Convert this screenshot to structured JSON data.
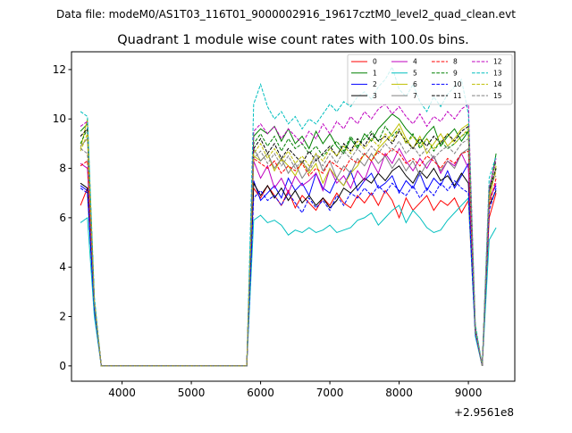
{
  "chart_data": {
    "type": "line",
    "suptitle": "Data file: modeM0/AS1T03_116T01_9000002916_19617cztM0_level2_quad_clean.evt",
    "title": "Quadrant 1 module wise count rates with 100.0s bins.",
    "xlabel": "",
    "ylabel": "",
    "x_offset_label": "+2.9561e8",
    "xlim": [
      3270,
      9670
    ],
    "ylim": [
      -0.62,
      12.72
    ],
    "x_ticks": [
      4000,
      5000,
      6000,
      7000,
      8000,
      9000
    ],
    "x_tick_labels": [
      "4000",
      "5000",
      "6000",
      "7000",
      "8000",
      "9000"
    ],
    "y_ticks": [
      0,
      2,
      4,
      6,
      8,
      10,
      12
    ],
    "y_tick_labels": [
      "0",
      "2",
      "4",
      "6",
      "8",
      "10",
      "12"
    ],
    "grid": false,
    "legend_position": "top-right",
    "legend_columns": 4,
    "x": [
      3400,
      3500,
      3600,
      3700,
      3800,
      3900,
      4000,
      4100,
      4200,
      4300,
      4400,
      4500,
      4600,
      4700,
      4800,
      4900,
      5000,
      5100,
      5200,
      5300,
      5400,
      5500,
      5600,
      5700,
      5800,
      5900,
      6000,
      6100,
      6200,
      6300,
      6400,
      6500,
      6600,
      6700,
      6800,
      6900,
      7000,
      7100,
      7200,
      7300,
      7400,
      7500,
      7600,
      7700,
      7800,
      7900,
      8000,
      8100,
      8200,
      8300,
      8400,
      8500,
      8600,
      8700,
      8800,
      8900,
      9000,
      9100,
      9200,
      9300,
      9400
    ],
    "series": [
      {
        "name": "0",
        "color": "#ff0000",
        "dash": "solid",
        "values": [
          6.5,
          7.2,
          2.5,
          0,
          0,
          0,
          0,
          0,
          0,
          0,
          0,
          0,
          0,
          0,
          0,
          0,
          0,
          0,
          0,
          0,
          0,
          0,
          0,
          0,
          0,
          7.2,
          6.8,
          7.3,
          6.9,
          6.5,
          7.1,
          6.4,
          6.9,
          6.6,
          6.3,
          6.8,
          6.5,
          7.0,
          6.6,
          6.4,
          6.9,
          6.6,
          7.0,
          6.5,
          7.1,
          6.7,
          6.0,
          6.8,
          6.3,
          6.6,
          6.9,
          6.3,
          6.7,
          6.5,
          6.8,
          6.2,
          6.7,
          1.3,
          0,
          6.0,
          7.0
        ]
      },
      {
        "name": "1",
        "color": "#008000",
        "dash": "solid",
        "values": [
          9.5,
          9.8,
          2.6,
          0,
          0,
          0,
          0,
          0,
          0,
          0,
          0,
          0,
          0,
          0,
          0,
          0,
          0,
          0,
          0,
          0,
          0,
          0,
          0,
          0,
          0,
          9.3,
          9.6,
          9.4,
          9.7,
          9.1,
          9.6,
          9.0,
          9.3,
          8.8,
          9.5,
          9.0,
          9.4,
          8.9,
          8.6,
          9.2,
          8.8,
          9.4,
          9.1,
          9.6,
          9.9,
          10.2,
          10.0,
          9.6,
          9.3,
          9.0,
          9.4,
          9.7,
          8.9,
          9.3,
          9.6,
          9.1,
          9.5,
          1.5,
          0,
          7.0,
          8.6
        ]
      },
      {
        "name": "2",
        "color": "#0000ff",
        "dash": "solid",
        "values": [
          7.3,
          7.1,
          2.3,
          0,
          0,
          0,
          0,
          0,
          0,
          0,
          0,
          0,
          0,
          0,
          0,
          0,
          0,
          0,
          0,
          0,
          0,
          0,
          0,
          0,
          0,
          7.5,
          6.7,
          7.0,
          7.3,
          6.8,
          7.6,
          7.1,
          7.4,
          6.9,
          7.8,
          7.2,
          7.0,
          7.6,
          7.3,
          7.9,
          7.1,
          7.5,
          7.8,
          7.2,
          7.4,
          7.7,
          7.0,
          7.5,
          7.2,
          7.8,
          7.1,
          7.6,
          7.3,
          7.9,
          7.2,
          7.7,
          8.2,
          1.4,
          0,
          6.8,
          7.3
        ]
      },
      {
        "name": "3",
        "color": "#000000",
        "dash": "solid",
        "values": [
          7.4,
          7.2,
          2.4,
          0,
          0,
          0,
          0,
          0,
          0,
          0,
          0,
          0,
          0,
          0,
          0,
          0,
          0,
          0,
          0,
          0,
          0,
          0,
          0,
          0,
          0,
          7.4,
          6.9,
          7.3,
          6.8,
          7.2,
          6.7,
          7.1,
          6.6,
          6.9,
          6.5,
          6.8,
          6.4,
          6.7,
          7.2,
          7.0,
          7.3,
          7.6,
          7.4,
          7.8,
          7.5,
          7.9,
          8.1,
          7.7,
          7.4,
          7.9,
          7.6,
          8.0,
          7.5,
          7.7,
          7.3,
          7.8,
          7.4,
          1.3,
          0,
          6.5,
          7.1
        ]
      },
      {
        "name": "4",
        "color": "#bf00bf",
        "dash": "solid",
        "values": [
          8.2,
          8.0,
          2.5,
          0,
          0,
          0,
          0,
          0,
          0,
          0,
          0,
          0,
          0,
          0,
          0,
          0,
          0,
          0,
          0,
          0,
          0,
          0,
          0,
          0,
          0,
          8.3,
          7.6,
          8.1,
          7.2,
          7.6,
          7.0,
          7.7,
          7.3,
          7.5,
          7.8,
          7.1,
          8.0,
          7.4,
          7.7,
          7.2,
          7.9,
          7.5,
          8.3,
          7.8,
          8.6,
          8.2,
          8.8,
          8.3,
          7.9,
          8.4,
          8.0,
          8.5,
          7.8,
          8.3,
          8.1,
          8.6,
          8.0,
          1.4,
          0,
          6.7,
          7.4
        ]
      },
      {
        "name": "5",
        "color": "#00bfbf",
        "dash": "solid",
        "values": [
          5.8,
          6.0,
          2.0,
          0,
          0,
          0,
          0,
          0,
          0,
          0,
          0,
          0,
          0,
          0,
          0,
          0,
          0,
          0,
          0,
          0,
          0,
          0,
          0,
          0,
          0,
          5.9,
          6.1,
          5.8,
          5.9,
          5.7,
          5.3,
          5.5,
          5.4,
          5.6,
          5.4,
          5.5,
          5.7,
          5.4,
          5.5,
          5.6,
          5.9,
          6.0,
          6.2,
          5.7,
          6.0,
          6.3,
          6.5,
          5.8,
          6.3,
          6.0,
          5.6,
          5.4,
          5.5,
          5.9,
          6.2,
          6.5,
          6.8,
          1.2,
          0,
          5.1,
          5.6
        ]
      },
      {
        "name": "6",
        "color": "#bfbf00",
        "dash": "solid",
        "values": [
          8.8,
          10.0,
          2.6,
          0,
          0,
          0,
          0,
          0,
          0,
          0,
          0,
          0,
          0,
          0,
          0,
          0,
          0,
          0,
          0,
          0,
          0,
          0,
          0,
          0,
          0,
          8.5,
          8.3,
          8.6,
          7.9,
          8.4,
          8.1,
          7.7,
          8.3,
          7.8,
          8.2,
          7.4,
          8.0,
          7.6,
          7.3,
          7.8,
          8.1,
          8.6,
          8.3,
          8.8,
          9.1,
          9.4,
          9.8,
          9.2,
          8.8,
          9.3,
          8.6,
          9.0,
          9.4,
          8.9,
          9.2,
          9.6,
          9.8,
          1.5,
          0,
          6.7,
          8.1
        ]
      },
      {
        "name": "7",
        "color": "#808080",
        "dash": "solid",
        "values": [
          8.9,
          9.2,
          2.5,
          0,
          0,
          0,
          0,
          0,
          0,
          0,
          0,
          0,
          0,
          0,
          0,
          0,
          0,
          0,
          0,
          0,
          0,
          0,
          0,
          0,
          0,
          8.8,
          8.3,
          8.6,
          8.0,
          8.4,
          7.8,
          8.2,
          7.6,
          8.0,
          8.6,
          7.9,
          8.3,
          7.6,
          8.1,
          7.8,
          8.4,
          8.1,
          8.6,
          8.2,
          8.5,
          8.0,
          8.4,
          7.9,
          8.3,
          7.7,
          8.2,
          8.5,
          7.9,
          8.3,
          8.0,
          8.6,
          8.8,
          1.4,
          0,
          7.0,
          8.0
        ]
      },
      {
        "name": "8",
        "color": "#ff0000",
        "dash": "dashed",
        "values": [
          8.1,
          8.3,
          2.5,
          0,
          0,
          0,
          0,
          0,
          0,
          0,
          0,
          0,
          0,
          0,
          0,
          0,
          0,
          0,
          0,
          0,
          0,
          0,
          0,
          0,
          0,
          8.4,
          8.2,
          8.0,
          8.3,
          7.8,
          8.1,
          7.9,
          8.2,
          7.7,
          8.0,
          7.8,
          8.3,
          8.1,
          7.9,
          8.4,
          8.2,
          8.6,
          8.3,
          8.7,
          8.5,
          8.8,
          8.6,
          8.2,
          8.4,
          8.1,
          8.5,
          8.3,
          8.0,
          8.4,
          8.2,
          8.6,
          8.7,
          1.4,
          0,
          6.5,
          7.6
        ]
      },
      {
        "name": "9",
        "color": "#008000",
        "dash": "dashed",
        "values": [
          9.0,
          9.6,
          2.6,
          0,
          0,
          0,
          0,
          0,
          0,
          0,
          0,
          0,
          0,
          0,
          0,
          0,
          0,
          0,
          0,
          0,
          0,
          0,
          0,
          0,
          0,
          9.0,
          9.4,
          8.9,
          9.3,
          8.7,
          9.2,
          8.8,
          9.0,
          8.6,
          8.9,
          8.5,
          8.8,
          9.1,
          8.7,
          9.3,
          8.9,
          9.2,
          9.5,
          9.1,
          9.7,
          9.3,
          9.6,
          9.0,
          9.4,
          8.8,
          9.2,
          8.7,
          9.1,
          8.8,
          9.0,
          9.3,
          9.5,
          1.5,
          0,
          7.2,
          8.3
        ]
      },
      {
        "name": "10",
        "color": "#0000ff",
        "dash": "dashed",
        "values": [
          7.2,
          7.0,
          2.3,
          0,
          0,
          0,
          0,
          0,
          0,
          0,
          0,
          0,
          0,
          0,
          0,
          0,
          0,
          0,
          0,
          0,
          0,
          0,
          0,
          0,
          0,
          6.8,
          7.1,
          6.7,
          6.9,
          6.5,
          7.0,
          6.6,
          6.2,
          6.8,
          6.4,
          6.7,
          6.3,
          6.9,
          6.5,
          7.0,
          6.8,
          7.2,
          6.9,
          7.3,
          7.0,
          7.4,
          7.1,
          6.9,
          7.3,
          6.8,
          7.2,
          6.9,
          7.4,
          7.1,
          7.5,
          7.2,
          7.0,
          1.3,
          0,
          6.3,
          7.2
        ]
      },
      {
        "name": "11",
        "color": "#000000",
        "dash": "dashed",
        "values": [
          9.3,
          9.6,
          2.6,
          0,
          0,
          0,
          0,
          0,
          0,
          0,
          0,
          0,
          0,
          0,
          0,
          0,
          0,
          0,
          0,
          0,
          0,
          0,
          0,
          0,
          0,
          8.8,
          9.2,
          8.6,
          9.0,
          8.4,
          8.8,
          8.5,
          8.2,
          8.7,
          8.3,
          8.6,
          8.9,
          8.5,
          9.0,
          8.7,
          9.2,
          8.9,
          9.4,
          9.1,
          9.3,
          9.0,
          9.5,
          9.1,
          8.8,
          9.2,
          8.9,
          9.3,
          9.0,
          9.4,
          9.1,
          9.5,
          9.7,
          1.5,
          0,
          7.1,
          8.0
        ]
      },
      {
        "name": "12",
        "color": "#bf00bf",
        "dash": "dashed",
        "values": [
          9.7,
          9.9,
          2.7,
          0,
          0,
          0,
          0,
          0,
          0,
          0,
          0,
          0,
          0,
          0,
          0,
          0,
          0,
          0,
          0,
          0,
          0,
          0,
          0,
          0,
          0,
          9.5,
          9.8,
          9.4,
          9.7,
          9.2,
          9.6,
          9.3,
          9.0,
          9.5,
          9.2,
          9.8,
          9.4,
          9.9,
          9.6,
          10.1,
          9.8,
          10.3,
          10.0,
          10.4,
          10.6,
          10.2,
          10.5,
          10.1,
          9.8,
          10.2,
          9.7,
          10.1,
          9.9,
          10.3,
          10.0,
          10.4,
          10.6,
          1.6,
          0,
          7.2,
          8.4
        ]
      },
      {
        "name": "13",
        "color": "#00bfbf",
        "dash": "dashed",
        "values": [
          10.3,
          10.1,
          2.8,
          0,
          0,
          0,
          0,
          0,
          0,
          0,
          0,
          0,
          0,
          0,
          0,
          0,
          0,
          0,
          0,
          0,
          0,
          0,
          0,
          0,
          0,
          10.6,
          11.4,
          10.5,
          10.0,
          10.3,
          9.8,
          10.1,
          9.6,
          10.0,
          9.8,
          10.2,
          10.6,
          10.3,
          10.7,
          10.5,
          10.9,
          11.1,
          10.8,
          11.3,
          11.6,
          12.1,
          11.2,
          10.9,
          11.4,
          10.7,
          10.3,
          10.9,
          10.5,
          11.0,
          11.3,
          11.6,
          10.2,
          1.7,
          0,
          7.6,
          8.5
        ]
      },
      {
        "name": "14",
        "color": "#bfbf00",
        "dash": "dashed",
        "values": [
          8.7,
          9.4,
          2.6,
          0,
          0,
          0,
          0,
          0,
          0,
          0,
          0,
          0,
          0,
          0,
          0,
          0,
          0,
          0,
          0,
          0,
          0,
          0,
          0,
          0,
          0,
          8.6,
          9.0,
          8.4,
          8.8,
          8.3,
          8.7,
          8.2,
          8.5,
          8.1,
          8.6,
          8.3,
          8.8,
          8.5,
          8.9,
          8.6,
          9.1,
          8.8,
          9.2,
          8.9,
          9.4,
          9.1,
          9.6,
          9.0,
          9.3,
          8.9,
          9.2,
          8.8,
          9.1,
          9.4,
          9.0,
          9.3,
          9.6,
          1.5,
          0,
          6.9,
          7.9
        ]
      },
      {
        "name": "15",
        "color": "#808080",
        "dash": "dashed",
        "values": [
          8.8,
          8.6,
          2.5,
          0,
          0,
          0,
          0,
          0,
          0,
          0,
          0,
          0,
          0,
          0,
          0,
          0,
          0,
          0,
          0,
          0,
          0,
          0,
          0,
          0,
          0,
          8.4,
          8.7,
          8.2,
          8.6,
          8.1,
          8.5,
          8.0,
          8.3,
          7.9,
          8.4,
          8.1,
          8.6,
          8.2,
          8.7,
          8.4,
          8.8,
          8.5,
          8.9,
          8.6,
          9.0,
          8.7,
          9.1,
          8.6,
          8.9,
          8.5,
          8.8,
          8.4,
          8.7,
          8.9,
          8.6,
          9.0,
          9.2,
          1.4,
          0,
          7.3,
          7.7
        ]
      }
    ]
  }
}
